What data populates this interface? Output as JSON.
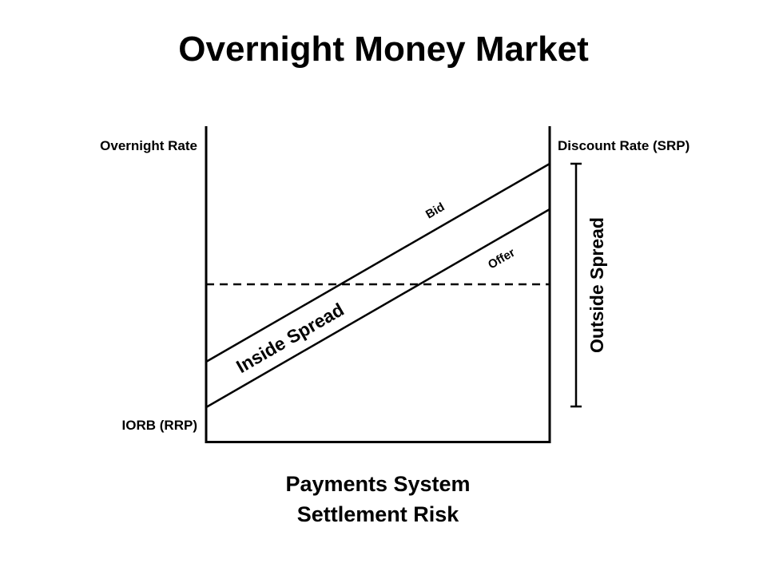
{
  "title": "Overnight Money Market",
  "labels": {
    "overnight_rate": "Overnight Rate",
    "discount_rate": "Discount Rate (SRP)",
    "iorb": "IORB (RRP)",
    "bid": "Bid",
    "offer": "Offer",
    "inside_spread": "Inside Spread",
    "outside_spread": "Outside Spread",
    "x_axis_line1": "Payments System",
    "x_axis_line2": "Settlement Risk"
  },
  "colors": {
    "ink": "#000000",
    "background": "#ffffff"
  }
}
